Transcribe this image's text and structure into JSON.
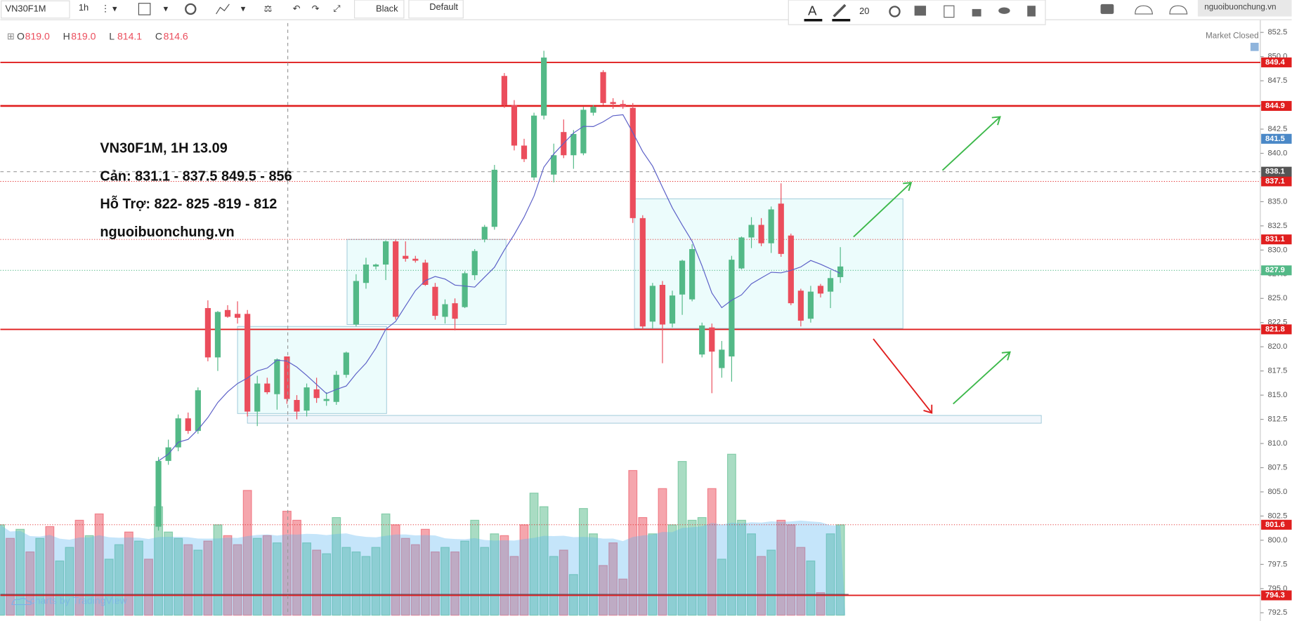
{
  "toolbar": {
    "symbol": "VN30F1M",
    "interval": "1h",
    "theme": "Black",
    "template": "Default",
    "font_size": "20",
    "site": "nguoibuonchung.vn"
  },
  "status": "Market Closed",
  "ohlc_legend": [
    {
      "label": "O",
      "value": "819.0"
    },
    {
      "label": "H",
      "value": "819.0"
    },
    {
      "label": "L",
      "value": "814.1"
    },
    {
      "label": "C",
      "value": "814.6"
    }
  ],
  "watermark": "charts by TradingView",
  "annotation": [
    "VN30F1M, 1H  13.09",
    "Cản:   831.1 - 837.5 849.5 - 856",
    "Hỗ Trợ: 822- 825 -819 - 812",
    "nguoibuonchung.vn"
  ],
  "chart_data": {
    "type": "candlestick",
    "up_color": "#53b987",
    "down_color": "#eb4d5c",
    "ma_color": "#5b5fc7",
    "level_color": "#e01e1e",
    "ylim": [
      792.5,
      852.5
    ],
    "yticks": [
      {
        "value": 852.5,
        "label": "852.5"
      },
      {
        "value": 850,
        "label": "850.0"
      },
      {
        "value": 847.5,
        "label": "847.5"
      },
      {
        "value": 845,
        "label": "845.0"
      },
      {
        "value": 842.5,
        "label": "842.5"
      },
      {
        "value": 840,
        "label": "840.0"
      },
      {
        "value": 837.5,
        "label": "837.5"
      },
      {
        "value": 835,
        "label": "835.0"
      },
      {
        "value": 832.5,
        "label": "832.5"
      },
      {
        "value": 830,
        "label": "830.0"
      },
      {
        "value": 827.5,
        "label": "827.5"
      },
      {
        "value": 825,
        "label": "825.0"
      },
      {
        "value": 822.5,
        "label": "822.5"
      },
      {
        "value": 820,
        "label": "820.0"
      },
      {
        "value": 817.5,
        "label": "817.5"
      },
      {
        "value": 815,
        "label": "815.0"
      },
      {
        "value": 812.5,
        "label": "812.5"
      },
      {
        "value": 810,
        "label": "810.0"
      },
      {
        "value": 807.5,
        "label": "807.5"
      },
      {
        "value": 805,
        "label": "805.0"
      },
      {
        "value": 802.5,
        "label": "802.5"
      },
      {
        "value": 800,
        "label": "800.0"
      },
      {
        "value": 797.5,
        "label": "797.5"
      },
      {
        "value": 795,
        "label": "795.0"
      },
      {
        "value": 792.5,
        "label": "792.5"
      }
    ],
    "candles": [
      {
        "o": 801.4,
        "h": 808.6,
        "l": 801,
        "c": 808.2
      },
      {
        "o": 808.2,
        "h": 810.4,
        "l": 807.8,
        "c": 809.6
      },
      {
        "o": 809.6,
        "h": 813,
        "l": 809.2,
        "c": 812.6
      },
      {
        "o": 812.6,
        "h": 813.2,
        "l": 811,
        "c": 811.3
      },
      {
        "o": 811.3,
        "h": 815.8,
        "l": 811,
        "c": 815.5
      },
      {
        "o": 824,
        "h": 824.8,
        "l": 818.5,
        "c": 818.9
      },
      {
        "o": 818.9,
        "h": 823.7,
        "l": 817.5,
        "c": 823.6
      },
      {
        "o": 823.8,
        "h": 824.3,
        "l": 823,
        "c": 823.1
      },
      {
        "o": 823.4,
        "h": 824.7,
        "l": 822.4,
        "c": 823
      },
      {
        "o": 823.4,
        "h": 823.8,
        "l": 812.8,
        "c": 813.3
      },
      {
        "o": 813.3,
        "h": 817,
        "l": 811.8,
        "c": 816.2
      },
      {
        "o": 816.2,
        "h": 816.8,
        "l": 815.1,
        "c": 815.3
      },
      {
        "o": 815.1,
        "h": 818.8,
        "l": 813.5,
        "c": 818.7
      },
      {
        "o": 819,
        "h": 819,
        "l": 814.1,
        "c": 814.6
      },
      {
        "o": 814.5,
        "h": 815,
        "l": 812.5,
        "c": 813.3
      },
      {
        "o": 813.4,
        "h": 816.2,
        "l": 812.8,
        "c": 815.8
      },
      {
        "o": 815.6,
        "h": 816.8,
        "l": 814.2,
        "c": 814.7
      },
      {
        "o": 814.4,
        "h": 815.3,
        "l": 813.9,
        "c": 814.6
      },
      {
        "o": 814.3,
        "h": 817.5,
        "l": 814,
        "c": 817.1
      },
      {
        "o": 817.1,
        "h": 819.5,
        "l": 816.8,
        "c": 819.4
      },
      {
        "o": 822.3,
        "h": 827.5,
        "l": 822.1,
        "c": 826.8
      },
      {
        "o": 826.6,
        "h": 829.2,
        "l": 826,
        "c": 828.5
      },
      {
        "o": 828.3,
        "h": 828.6,
        "l": 828,
        "c": 828.5
      },
      {
        "o": 828.5,
        "h": 831,
        "l": 826.9,
        "c": 830.9
      },
      {
        "o": 830.9,
        "h": 831.1,
        "l": 822.8,
        "c": 823.1
      },
      {
        "o": 829.4,
        "h": 830.9,
        "l": 828.8,
        "c": 829.1
      },
      {
        "o": 829.1,
        "h": 829.4,
        "l": 828.7,
        "c": 828.9
      },
      {
        "o": 828.7,
        "h": 829,
        "l": 826.3,
        "c": 826.4
      },
      {
        "o": 826.2,
        "h": 826.6,
        "l": 822.8,
        "c": 823.2
      },
      {
        "o": 823.1,
        "h": 824.9,
        "l": 822.4,
        "c": 824.4
      },
      {
        "o": 824.5,
        "h": 825,
        "l": 821.7,
        "c": 822.9
      },
      {
        "o": 824.1,
        "h": 827.8,
        "l": 824,
        "c": 827.6
      },
      {
        "o": 827.4,
        "h": 830.1,
        "l": 826.9,
        "c": 829.9
      },
      {
        "o": 831.1,
        "h": 832.6,
        "l": 830.8,
        "c": 832.4
      },
      {
        "o": 832.4,
        "h": 838.8,
        "l": 832.1,
        "c": 838.3
      },
      {
        "o": 848,
        "h": 848.3,
        "l": 844.7,
        "c": 845
      },
      {
        "o": 845,
        "h": 845.5,
        "l": 840.3,
        "c": 840.8
      },
      {
        "o": 840.8,
        "h": 841.5,
        "l": 839.1,
        "c": 839.4
      },
      {
        "o": 837.5,
        "h": 844.2,
        "l": 837.2,
        "c": 843.9
      },
      {
        "o": 843.9,
        "h": 850.6,
        "l": 843.5,
        "c": 849.9
      },
      {
        "o": 837.8,
        "h": 841,
        "l": 837,
        "c": 839.8
      },
      {
        "o": 842.2,
        "h": 843.5,
        "l": 839.5,
        "c": 839.8
      },
      {
        "o": 839.8,
        "h": 842.4,
        "l": 838.4,
        "c": 842
      },
      {
        "o": 840,
        "h": 844.8,
        "l": 839.8,
        "c": 844.5
      },
      {
        "o": 844.2,
        "h": 845,
        "l": 843.9,
        "c": 844.8
      },
      {
        "o": 848.4,
        "h": 848.6,
        "l": 845,
        "c": 845.2
      },
      {
        "o": 845.3,
        "h": 845.7,
        "l": 844.6,
        "c": 845.1
      },
      {
        "o": 845.1,
        "h": 845.5,
        "l": 844.6,
        "c": 844.8
      },
      {
        "o": 844.7,
        "h": 845.2,
        "l": 832.8,
        "c": 833.3
      },
      {
        "o": 833.3,
        "h": 833.6,
        "l": 821.8,
        "c": 822.1
      },
      {
        "o": 822.6,
        "h": 826.6,
        "l": 821.9,
        "c": 826.3
      },
      {
        "o": 826.4,
        "h": 826.8,
        "l": 818.3,
        "c": 822.3
      },
      {
        "o": 822.4,
        "h": 825.8,
        "l": 822,
        "c": 825.3
      },
      {
        "o": 825.4,
        "h": 829,
        "l": 823.3,
        "c": 828.9
      },
      {
        "o": 824.9,
        "h": 830.6,
        "l": 824.7,
        "c": 830.1
      },
      {
        "o": 819.2,
        "h": 822.5,
        "l": 818.9,
        "c": 822.2
      },
      {
        "o": 822,
        "h": 822.4,
        "l": 815.2,
        "c": 819.5
      },
      {
        "o": 817.8,
        "h": 820.6,
        "l": 816.8,
        "c": 819.7
      },
      {
        "o": 819,
        "h": 829.4,
        "l": 816.4,
        "c": 829
      },
      {
        "o": 828.1,
        "h": 831.4,
        "l": 828,
        "c": 831.3
      },
      {
        "o": 831.3,
        "h": 833.4,
        "l": 830.2,
        "c": 832.6
      },
      {
        "o": 832.6,
        "h": 833.3,
        "l": 830.4,
        "c": 830.7
      },
      {
        "o": 830.7,
        "h": 834.5,
        "l": 829.7,
        "c": 834.2
      },
      {
        "o": 834.8,
        "h": 836.9,
        "l": 829.3,
        "c": 829.6
      },
      {
        "o": 831.5,
        "h": 831.7,
        "l": 824.3,
        "c": 824.5
      },
      {
        "o": 825.8,
        "h": 826,
        "l": 822.1,
        "c": 822.7
      },
      {
        "o": 822.9,
        "h": 826.3,
        "l": 822.5,
        "c": 825.7
      },
      {
        "o": 826.3,
        "h": 826.5,
        "l": 825.1,
        "c": 825.5
      },
      {
        "o": 825.7,
        "h": 827.9,
        "l": 824,
        "c": 827.1
      },
      {
        "o": 827.2,
        "h": 830.3,
        "l": 826.6,
        "c": 828.3
      }
    ],
    "volume_lim": [
      0,
      200
    ],
    "volume_before": [
      100,
      85,
      95,
      70,
      85,
      98,
      60,
      75,
      105,
      88,
      112,
      62,
      78,
      92,
      82,
      62
    ],
    "volume_before_up": [
      true,
      false,
      true,
      false,
      true,
      false,
      true,
      true,
      false,
      true,
      false,
      true,
      true,
      false,
      true,
      false
    ],
    "volume": [
      120,
      92,
      85,
      78,
      72,
      82,
      100,
      88,
      78,
      138,
      85,
      88,
      80,
      115,
      105,
      80,
      72,
      68,
      108,
      75,
      70,
      65,
      75,
      112,
      100,
      85,
      78,
      95,
      70,
      75,
      70,
      82,
      105,
      75,
      90,
      88,
      65,
      100,
      135,
      120,
      65,
      72,
      45,
      118,
      90,
      55,
      80,
      40,
      160,
      108,
      90,
      140,
      100,
      170,
      105,
      108,
      140,
      62,
      178,
      105,
      90,
      65,
      72,
      105,
      100,
      75,
      60,
      25,
      90,
      100
    ],
    "levels": [
      {
        "value": 849.4,
        "label": "849.4",
        "style": "solid"
      },
      {
        "value": 844.9,
        "label": "844.9",
        "style": "thick"
      },
      {
        "value": 837.1,
        "label": "837.1",
        "style": "dotted"
      },
      {
        "value": 831.1,
        "label": "831.1",
        "style": "dotted"
      },
      {
        "value": 821.8,
        "label": "821.8",
        "style": "solid"
      },
      {
        "value": 801.6,
        "label": "801.6",
        "style": "dotted"
      },
      {
        "value": 794.3,
        "label": "794.3",
        "style": "solid"
      }
    ],
    "markers": [
      {
        "value": 841.5,
        "label": "841.5",
        "color": "#4a88c7"
      },
      {
        "value": 838.1,
        "label": "838.1",
        "color": "#555555"
      },
      {
        "value": 827.9,
        "label": "827.9",
        "color": "#53b987"
      }
    ],
    "boxes": [
      {
        "top": 822.1,
        "bottom": 813.1
      },
      {
        "top": 831.1,
        "bottom": 822.3
      },
      {
        "top": 835.3,
        "bottom": 821.9
      },
      {
        "top": 812.9,
        "bottom": 812.1
      }
    ]
  }
}
